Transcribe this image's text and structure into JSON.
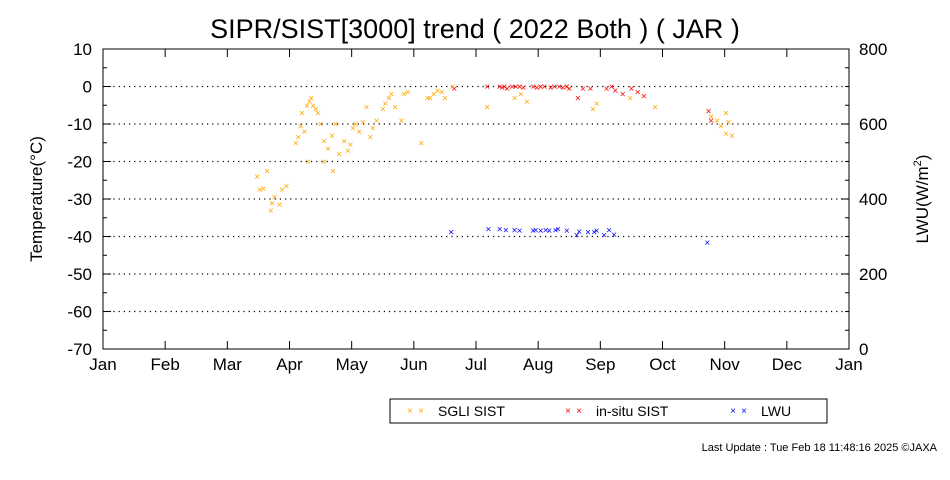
{
  "chart_data": {
    "type": "scatter",
    "title": "SIPR/SIST[3000] trend ( 2022 Both ) ( JAR )",
    "ylabel": "Temperature(°C)",
    "y2label_main": "LWU(W/m",
    "y2label_sup": "2",
    "y2label_end": ")",
    "ylim": [
      -70,
      10
    ],
    "y2lim": [
      0,
      800
    ],
    "yticks": [
      "10",
      "0",
      "-10",
      "-20",
      "-30",
      "-40",
      "-50",
      "-60",
      "-70"
    ],
    "y2ticks": [
      "800",
      "600",
      "400",
      "200",
      "0"
    ],
    "xlim": [
      0,
      12
    ],
    "xticks": [
      "Jan",
      "Feb",
      "Mar",
      "Apr",
      "May",
      "Jun",
      "Jul",
      "Aug",
      "Sep",
      "Oct",
      "Nov",
      "Dec",
      "Jan"
    ],
    "grid": "horizontal dotted at y multiples of 10",
    "legend_placement": "bottom-right",
    "series": [
      {
        "name": "SGLI SIST",
        "color": "#FFA500",
        "axis": "left",
        "marker": "×",
        "points": [
          [
            2.48,
            -24
          ],
          [
            2.52,
            -27.5
          ],
          [
            2.58,
            -27.2
          ],
          [
            2.64,
            -22.5
          ],
          [
            2.7,
            -33
          ],
          [
            2.72,
            -31
          ],
          [
            2.76,
            -29.5
          ],
          [
            2.84,
            -31.5
          ],
          [
            2.88,
            -27.5
          ],
          [
            2.95,
            -26.5
          ],
          [
            3.1,
            -15
          ],
          [
            3.14,
            -13.5
          ],
          [
            3.18,
            -10.5
          ],
          [
            3.2,
            -7
          ],
          [
            3.24,
            -12
          ],
          [
            3.28,
            -5
          ],
          [
            3.32,
            -4
          ],
          [
            3.35,
            -3
          ],
          [
            3.38,
            -5
          ],
          [
            3.42,
            -6
          ],
          [
            3.46,
            -7
          ],
          [
            3.5,
            -10
          ],
          [
            3.56,
            -14.5
          ],
          [
            3.62,
            -16.5
          ],
          [
            3.68,
            -13
          ],
          [
            3.74,
            -10
          ],
          [
            3.8,
            -18
          ],
          [
            3.88,
            -14.5
          ],
          [
            3.94,
            -17
          ],
          [
            3.3,
            -20
          ],
          [
            3.7,
            -22.5
          ],
          [
            3.56,
            -20
          ],
          [
            3.98,
            -15.5
          ],
          [
            4.02,
            -11
          ],
          [
            4.06,
            -10
          ],
          [
            4.12,
            -12
          ],
          [
            4.18,
            -9.5
          ],
          [
            4.24,
            -5.5
          ],
          [
            4.3,
            -13.5
          ],
          [
            4.34,
            -11
          ],
          [
            4.4,
            -9
          ],
          [
            4.5,
            -6
          ],
          [
            4.54,
            -4.5
          ],
          [
            4.6,
            -3
          ],
          [
            4.64,
            -2
          ],
          [
            4.7,
            -5.5
          ],
          [
            4.8,
            -9
          ],
          [
            4.84,
            -2
          ],
          [
            4.9,
            -1.5
          ],
          [
            5.12,
            -15
          ],
          [
            5.22,
            -3
          ],
          [
            5.26,
            -3
          ],
          [
            5.32,
            -2
          ],
          [
            5.38,
            -1
          ],
          [
            5.45,
            -1.5
          ],
          [
            5.5,
            -3
          ],
          [
            5.62,
            0
          ],
          [
            6.18,
            -5.5
          ],
          [
            6.62,
            -3
          ],
          [
            6.72,
            -2
          ],
          [
            6.82,
            -4
          ],
          [
            7.88,
            -6
          ],
          [
            7.94,
            -4.5
          ],
          [
            8.48,
            -3
          ],
          [
            8.88,
            -5.5
          ],
          [
            9.78,
            -8
          ],
          [
            9.88,
            -9
          ],
          [
            9.94,
            -10.5
          ],
          [
            10.02,
            -7
          ],
          [
            10.06,
            -9.5
          ],
          [
            10.02,
            -12.5
          ],
          [
            10.12,
            -13
          ]
        ]
      },
      {
        "name": "in-situ SIST",
        "color": "#FF0000",
        "axis": "left",
        "marker": "×",
        "points": [
          [
            5.65,
            -0.5
          ],
          [
            6.18,
            0
          ],
          [
            6.38,
            0
          ],
          [
            6.42,
            -0.3
          ],
          [
            6.46,
            0
          ],
          [
            6.5,
            -0.5
          ],
          [
            6.58,
            0
          ],
          [
            6.64,
            0
          ],
          [
            6.7,
            0
          ],
          [
            6.76,
            -0.3
          ],
          [
            6.92,
            0
          ],
          [
            6.98,
            -0.3
          ],
          [
            7.04,
            0
          ],
          [
            7.1,
            0
          ],
          [
            7.2,
            -0.3
          ],
          [
            7.26,
            0
          ],
          [
            7.34,
            0
          ],
          [
            7.4,
            -0.3
          ],
          [
            7.46,
            0
          ],
          [
            7.5,
            -0.5
          ],
          [
            7.64,
            -3
          ],
          [
            7.72,
            -0.5
          ],
          [
            7.84,
            -0.5
          ],
          [
            8.1,
            -0.5
          ],
          [
            8.18,
            0
          ],
          [
            8.24,
            -1
          ],
          [
            8.36,
            -2
          ],
          [
            8.5,
            -0.5
          ],
          [
            8.6,
            -1.5
          ],
          [
            8.7,
            -2.5
          ],
          [
            9.74,
            -6.5
          ],
          [
            9.78,
            -9
          ]
        ]
      },
      {
        "name": "LWU",
        "color": "#0000FF",
        "axis": "right",
        "marker": "×",
        "points": [
          [
            5.6,
            312
          ],
          [
            6.2,
            320
          ],
          [
            6.38,
            320
          ],
          [
            6.48,
            318
          ],
          [
            6.62,
            318
          ],
          [
            6.7,
            316
          ],
          [
            6.92,
            316
          ],
          [
            6.96,
            318
          ],
          [
            7.04,
            316
          ],
          [
            7.12,
            318
          ],
          [
            7.18,
            316
          ],
          [
            7.28,
            318
          ],
          [
            7.32,
            320
          ],
          [
            7.46,
            316
          ],
          [
            7.62,
            304
          ],
          [
            7.66,
            314
          ],
          [
            7.8,
            312
          ],
          [
            7.9,
            312
          ],
          [
            7.94,
            316
          ],
          [
            8.06,
            304
          ],
          [
            8.14,
            318
          ],
          [
            8.22,
            306
          ],
          [
            9.72,
            284
          ]
        ]
      }
    ],
    "legend": [
      {
        "label": "SGLI SIST",
        "color": "#FFA500"
      },
      {
        "label": "in-situ SIST",
        "color": "#FF0000"
      },
      {
        "label": "LWU",
        "color": "#0000FF"
      }
    ],
    "footer": "Last Update : Tue Feb 18 11:48:16 2025  ©JAXA"
  }
}
